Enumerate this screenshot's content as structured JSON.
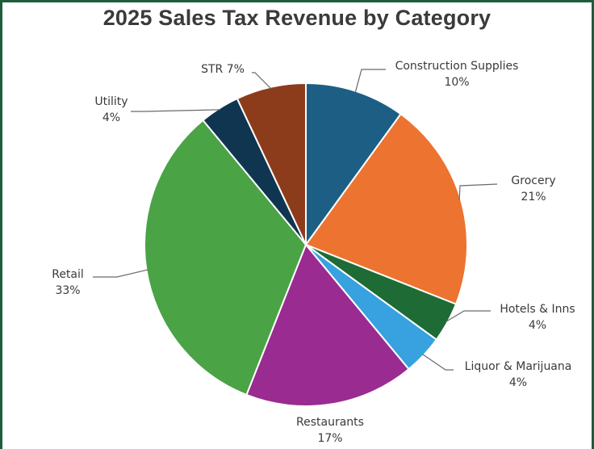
{
  "chart_data": {
    "type": "pie",
    "title": "2025 Sales Tax Revenue by Category",
    "start_angle_deg": 0,
    "direction": "clockwise",
    "slices": [
      {
        "name": "Construction Supplies",
        "value": 10,
        "percent_label": "10%",
        "color": "#1d5f84",
        "label_inline": false
      },
      {
        "name": "Grocery",
        "value": 21,
        "percent_label": "21%",
        "color": "#ec7330",
        "label_inline": false
      },
      {
        "name": "Hotels & Inns",
        "value": 4,
        "percent_label": "4%",
        "color": "#1e6b36",
        "label_inline": false
      },
      {
        "name": "Liquor & Marijuana",
        "value": 4,
        "percent_label": "4%",
        "color": "#37a2df",
        "label_inline": false
      },
      {
        "name": "Restaurants",
        "value": 17,
        "percent_label": "17%",
        "color": "#992b91",
        "label_inline": false
      },
      {
        "name": "Retail",
        "value": 33,
        "percent_label": "33%",
        "color": "#4aa345",
        "label_inline": false
      },
      {
        "name": "Utility",
        "value": 4,
        "percent_label": "4%",
        "color": "#0f3550",
        "label_inline": false
      },
      {
        "name": "STR",
        "value": 7,
        "percent_label": "7%",
        "color": "#8d3c1b",
        "label_inline": true
      }
    ]
  }
}
